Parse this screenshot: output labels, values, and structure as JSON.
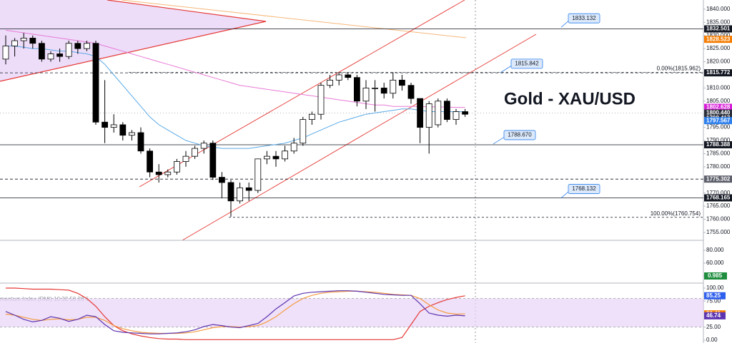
{
  "chart_data": {
    "type": "candlestick",
    "title": "Gold - XAU/USD",
    "ylim": [
      1752,
      1843.5
    ],
    "yticks": [
      {
        "value": 1755,
        "label": "1755.000"
      },
      {
        "value": 1760,
        "label": "1760.000"
      },
      {
        "value": 1765,
        "label": "1765.000"
      },
      {
        "value": 1770,
        "label": "1770.000"
      },
      {
        "value": 1775,
        "label": "1775.000"
      },
      {
        "value": 1780,
        "label": "1780.000"
      },
      {
        "value": 1785,
        "label": "1785.000"
      },
      {
        "value": 1790,
        "label": "1790.000"
      },
      {
        "value": 1795,
        "label": "1795.000"
      },
      {
        "value": 1800,
        "label": "1800.000"
      },
      {
        "value": 1805,
        "label": "1805.000"
      },
      {
        "value": 1810,
        "label": "1810.000"
      },
      {
        "value": 1815,
        "label": "1815.000"
      },
      {
        "value": 1820,
        "label": "1820.000"
      },
      {
        "value": 1825,
        "label": "1825.000"
      },
      {
        "value": 1830,
        "label": "1830.000"
      },
      {
        "value": 1835,
        "label": "1835.000"
      },
      {
        "value": 1840,
        "label": "1840.000"
      }
    ],
    "grid": false,
    "up_color": "#ffffff",
    "down_color": "#000000",
    "open": [
      1821,
      1826,
      1828,
      1829,
      1827,
      1821,
      1823,
      1822,
      1827,
      1825,
      1827,
      1797,
      1795,
      1796,
      1792,
      1793,
      1786,
      1778,
      1777,
      1778,
      1782,
      1784,
      1787,
      1789,
      1776,
      1774,
      1767,
      1772,
      1771,
      1783,
      1784,
      1783,
      1786,
      1789,
      1798,
      1800,
      1811,
      1813,
      1815,
      1814,
      1805,
      1810,
      1810,
      1808,
      1813,
      1811,
      1806,
      1795,
      1796,
      1805,
      1798,
      1801
    ],
    "high": [
      1830,
      1829,
      1831,
      1830,
      1828,
      1824,
      1825,
      1828,
      1828,
      1828,
      1828,
      1813,
      1800,
      1797,
      1794,
      1795,
      1787,
      1781,
      1779,
      1783,
      1786,
      1788,
      1790,
      1790,
      1778,
      1775,
      1774,
      1774,
      1783,
      1786,
      1786,
      1788,
      1791,
      1799,
      1801,
      1812,
      1815,
      1816,
      1816,
      1815,
      1813,
      1813,
      1812,
      1816,
      1815,
      1812,
      1806,
      1805,
      1806,
      1806,
      1802,
      1802
    ],
    "low": [
      1819,
      1822,
      1825,
      1825,
      1820,
      1820,
      1820,
      1821,
      1823,
      1824,
      1796,
      1789,
      1793,
      1790,
      1790,
      1785,
      1776,
      1774,
      1776,
      1777,
      1780,
      1783,
      1785,
      1775,
      1768,
      1761,
      1766,
      1767,
      1770,
      1781,
      1780,
      1782,
      1785,
      1788,
      1796,
      1798,
      1810,
      1811,
      1813,
      1803,
      1802,
      1801,
      1806,
      1806,
      1809,
      1804,
      1789,
      1785,
      1795,
      1797,
      1796,
      1799
    ],
    "close": [
      1826,
      1828,
      1829,
      1827,
      1821,
      1823,
      1822,
      1827,
      1825,
      1827,
      1797,
      1795,
      1796,
      1792,
      1793,
      1786,
      1778,
      1777,
      1778,
      1782,
      1784,
      1787,
      1789,
      1776,
      1774,
      1767,
      1772,
      1771,
      1783,
      1784,
      1783,
      1786,
      1789,
      1798,
      1800,
      1811,
      1813,
      1815,
      1814,
      1805,
      1810,
      1810,
      1808,
      1813,
      1811,
      1806,
      1795,
      1804,
      1805,
      1798,
      1801,
      1800
    ],
    "series": [
      {
        "color": "#5aa9e6",
        "values": [
          1826,
          1826,
          1825.5,
          1825,
          1825,
          1824.5,
          1824,
          1824,
          1823.5,
          1823,
          1822,
          1819,
          1815,
          1811,
          1807,
          1803,
          1799,
          1796,
          1794,
          1792,
          1790,
          1789,
          1788,
          1787.5,
          1787,
          1787,
          1787,
          1787,
          1787.5,
          1788,
          1788.5,
          1789,
          1790,
          1791,
          1792.5,
          1794,
          1795.5,
          1797,
          1798,
          1799,
          1800,
          1800.5,
          1801,
          1801.5,
          1802,
          1802,
          1801.5,
          1801,
          1801,
          1801,
          1801,
          1801
        ]
      },
      {
        "color": "#e87ad6",
        "values": [
          1832,
          1831.5,
          1831,
          1830.5,
          1830,
          1829.5,
          1829,
          1828.5,
          1828,
          1827.5,
          1827,
          1826,
          1825,
          1824,
          1823,
          1822,
          1821,
          1820,
          1819,
          1818,
          1817,
          1816,
          1815,
          1814,
          1813,
          1812,
          1811,
          1810.5,
          1810,
          1809.5,
          1809,
          1808.5,
          1808,
          1807.5,
          1807,
          1806.5,
          1806,
          1805.5,
          1805,
          1804.5,
          1804,
          1803.5,
          1803.5,
          1803,
          1803,
          1803,
          1803,
          1802.8,
          1802.8,
          1802.7,
          1802.6,
          1802.6
        ]
      }
    ],
    "price_badges": [
      {
        "value": 1832.501,
        "label": "1832.501",
        "color": "#131722",
        "line": "solid"
      },
      {
        "value": 1828.523,
        "label": "1828.523",
        "color": "#f57c00",
        "line": "none"
      },
      {
        "value": 1815.772,
        "label": "1815.772",
        "color": "#131722",
        "line": "dashed"
      },
      {
        "value": 1802.628,
        "label": "1802.628",
        "color": "#d81bd8",
        "line": "none"
      },
      {
        "value": 1800.44,
        "label": "1800.440",
        "color": "#2a2e39",
        "line": "dotted"
      },
      {
        "value": 1798.417,
        "label": "1798.417",
        "color": "#2a2e39",
        "line": "none"
      },
      {
        "value": 1797.567,
        "label": "1797.567",
        "color": "#2f80ed",
        "line": "none"
      },
      {
        "value": 1788.388,
        "label": "1788.388",
        "color": "#131722",
        "line": "solid"
      },
      {
        "value": 1775.302,
        "label": "1775.302",
        "color": "#5d606b",
        "line": "dashed"
      },
      {
        "value": 1768.165,
        "label": "1768.165",
        "color": "#131722",
        "line": "solid"
      }
    ],
    "callouts": [
      {
        "value": 1833.132,
        "label": "1833.132"
      },
      {
        "value": 1815.842,
        "label": "1815.842"
      },
      {
        "value": 1788.67,
        "label": "1788.670"
      },
      {
        "value": 1768.132,
        "label": "1768.132"
      }
    ],
    "fib_levels": [
      {
        "value": 1815.962,
        "label": "0.00%(1815.962)"
      },
      {
        "value": 1760.754,
        "label": "100.00%(1760.754)"
      }
    ],
    "volume_pane": {
      "ylim": [
        28.9,
        95.6
      ],
      "yticks": [
        {
          "value": 40,
          "label": "40.000"
        },
        {
          "value": 60,
          "label": "60.000"
        },
        {
          "value": 80,
          "label": "80.000"
        }
      ],
      "badge": {
        "value": 0.985,
        "label": "0.985",
        "color": "#1e8e3e"
      }
    },
    "rsi_pane": {
      "label": "mentum Index (RMI) 10 32 50 20 6",
      "ylim": [
        -5.5,
        109.6
      ],
      "yticks": [
        {
          "value": 0,
          "label": "0.00"
        },
        {
          "value": 25,
          "label": "25.00"
        },
        {
          "value": 75,
          "label": "75.00"
        },
        {
          "value": 100,
          "label": "100.00"
        }
      ],
      "band": [
        25,
        80
      ],
      "series": [
        {
          "color": "#e53935",
          "values": [
            100,
            100,
            99,
            98,
            98,
            98,
            97,
            96,
            90,
            80,
            65,
            45,
            28,
            18,
            12,
            8,
            5,
            3,
            2,
            2,
            1,
            1,
            1,
            1,
            1,
            1,
            1,
            1,
            1,
            1,
            1,
            1,
            1,
            1,
            1,
            1,
            1,
            1,
            1,
            1,
            1,
            1,
            1,
            1,
            5,
            30,
            55,
            65,
            72,
            78,
            82,
            85.25
          ]
        },
        {
          "color": "#f59b42",
          "values": [
            50,
            48,
            44,
            40,
            38,
            40,
            41,
            39,
            40,
            44,
            44,
            38,
            28,
            22,
            18,
            15,
            14,
            13,
            13,
            13,
            14,
            16,
            20,
            24,
            26,
            26,
            25,
            26,
            28,
            35,
            45,
            58,
            70,
            80,
            86,
            90,
            92,
            93,
            94,
            94,
            93,
            92,
            90,
            88,
            87,
            86,
            80,
            68,
            58,
            52,
            50,
            50.41
          ]
        },
        {
          "color": "#5e35b1",
          "values": [
            55,
            48,
            40,
            35,
            38,
            45,
            42,
            36,
            40,
            48,
            45,
            30,
            18,
            15,
            14,
            13,
            12,
            12,
            13,
            14,
            16,
            20,
            26,
            30,
            28,
            25,
            24,
            28,
            32,
            45,
            60,
            72,
            85,
            90,
            92,
            93,
            94,
            95,
            95,
            94,
            92,
            90,
            88,
            87,
            86,
            86,
            70,
            52,
            48,
            46,
            48,
            46.74
          ]
        }
      ],
      "badges": [
        {
          "value": 85.25,
          "label": "85.25",
          "color": "#2f5fed"
        },
        {
          "value": 50.41,
          "label": "50.41",
          "color": "#f57c00"
        },
        {
          "value": 46.74,
          "label": "46.74",
          "color": "#5e35b1"
        }
      ]
    }
  }
}
